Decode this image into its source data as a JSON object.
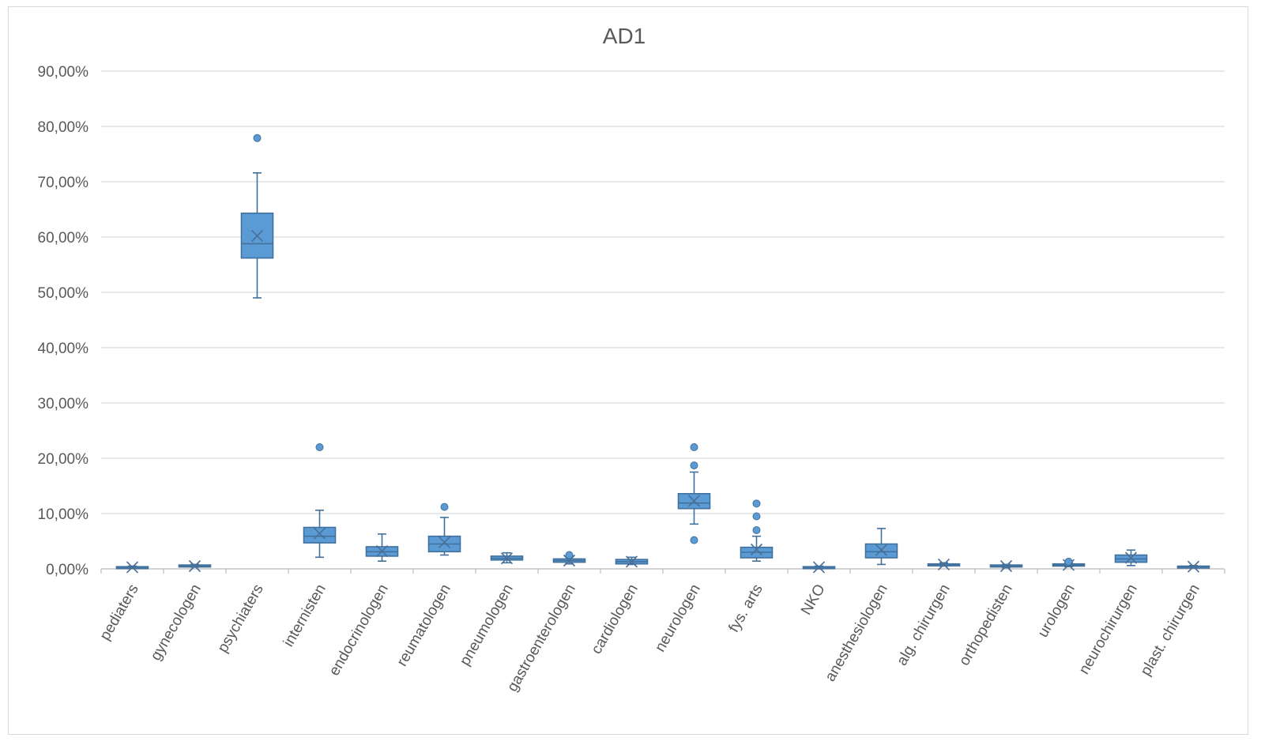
{
  "chart_data": {
    "type": "box",
    "title": "AD1",
    "xlabel": "",
    "ylabel": "",
    "ylim": [
      0,
      0.9
    ],
    "yticks": [
      "0,00%",
      "10,00%",
      "20,00%",
      "30,00%",
      "40,00%",
      "50,00%",
      "60,00%",
      "70,00%",
      "80,00%",
      "90,00%"
    ],
    "ytick_values": [
      0,
      0.1,
      0.2,
      0.3,
      0.4,
      0.5,
      0.6,
      0.7,
      0.8,
      0.9
    ],
    "grid": true,
    "legend": "none",
    "box_color": "#5b9bd5",
    "edge_color": "#41719c",
    "categories": [
      "pediaters",
      "gynecologen",
      "psychiaters",
      "internisten",
      "endocrinologen",
      "reumatologen",
      "pneumologen",
      "gastroenterologen",
      "cardiologen",
      "neurologen",
      "fys. arts",
      "NKO",
      "anesthesiologen",
      "alg. chirurgen",
      "orthopedisten",
      "urologen",
      "neurochirurgen",
      "plast. chirurgen"
    ],
    "boxes": [
      {
        "min": 0.001,
        "q1": 0.002,
        "median": 0.003,
        "q3": 0.004,
        "max": 0.005,
        "mean": 0.003,
        "outliers": []
      },
      {
        "min": 0.003,
        "q1": 0.004,
        "median": 0.005,
        "q3": 0.007,
        "max": 0.008,
        "mean": 0.005,
        "outliers": []
      },
      {
        "min": 0.49,
        "q1": 0.562,
        "median": 0.588,
        "q3": 0.643,
        "max": 0.716,
        "mean": 0.602,
        "outliers": [
          0.779
        ]
      },
      {
        "min": 0.021,
        "q1": 0.047,
        "median": 0.059,
        "q3": 0.075,
        "max": 0.106,
        "mean": 0.064,
        "outliers": [
          0.22
        ]
      },
      {
        "min": 0.014,
        "q1": 0.023,
        "median": 0.031,
        "q3": 0.04,
        "max": 0.063,
        "mean": 0.032,
        "outliers": []
      },
      {
        "min": 0.025,
        "q1": 0.031,
        "median": 0.045,
        "q3": 0.059,
        "max": 0.093,
        "mean": 0.048,
        "outliers": [
          0.112
        ]
      },
      {
        "min": 0.011,
        "q1": 0.016,
        "median": 0.019,
        "q3": 0.023,
        "max": 0.029,
        "mean": 0.019,
        "outliers": []
      },
      {
        "min": 0.009,
        "q1": 0.012,
        "median": 0.015,
        "q3": 0.018,
        "max": 0.023,
        "mean": 0.015,
        "outliers": [
          0.025
        ]
      },
      {
        "min": 0.008,
        "q1": 0.009,
        "median": 0.013,
        "q3": 0.017,
        "max": 0.021,
        "mean": 0.013,
        "outliers": []
      },
      {
        "min": 0.081,
        "q1": 0.109,
        "median": 0.119,
        "q3": 0.136,
        "max": 0.175,
        "mean": 0.123,
        "outliers": [
          0.052,
          0.187,
          0.22
        ]
      },
      {
        "min": 0.014,
        "q1": 0.02,
        "median": 0.03,
        "q3": 0.039,
        "max": 0.059,
        "mean": 0.035,
        "outliers": [
          0.07,
          0.095,
          0.118
        ]
      },
      {
        "min": 0.0,
        "q1": 0.002,
        "median": 0.003,
        "q3": 0.004,
        "max": 0.005,
        "mean": 0.003,
        "outliers": []
      },
      {
        "min": 0.008,
        "q1": 0.02,
        "median": 0.031,
        "q3": 0.045,
        "max": 0.073,
        "mean": 0.034,
        "outliers": []
      },
      {
        "min": 0.005,
        "q1": 0.006,
        "median": 0.008,
        "q3": 0.009,
        "max": 0.011,
        "mean": 0.008,
        "outliers": []
      },
      {
        "min": 0.002,
        "q1": 0.004,
        "median": 0.005,
        "q3": 0.007,
        "max": 0.008,
        "mean": 0.005,
        "outliers": []
      },
      {
        "min": 0.004,
        "q1": 0.005,
        "median": 0.007,
        "q3": 0.009,
        "max": 0.011,
        "mean": 0.007,
        "outliers": [
          0.013
        ]
      },
      {
        "min": 0.006,
        "q1": 0.012,
        "median": 0.018,
        "q3": 0.025,
        "max": 0.034,
        "mean": 0.02,
        "outliers": []
      },
      {
        "min": 0.002,
        "q1": 0.003,
        "median": 0.004,
        "q3": 0.005,
        "max": 0.006,
        "mean": 0.004,
        "outliers": []
      }
    ]
  }
}
